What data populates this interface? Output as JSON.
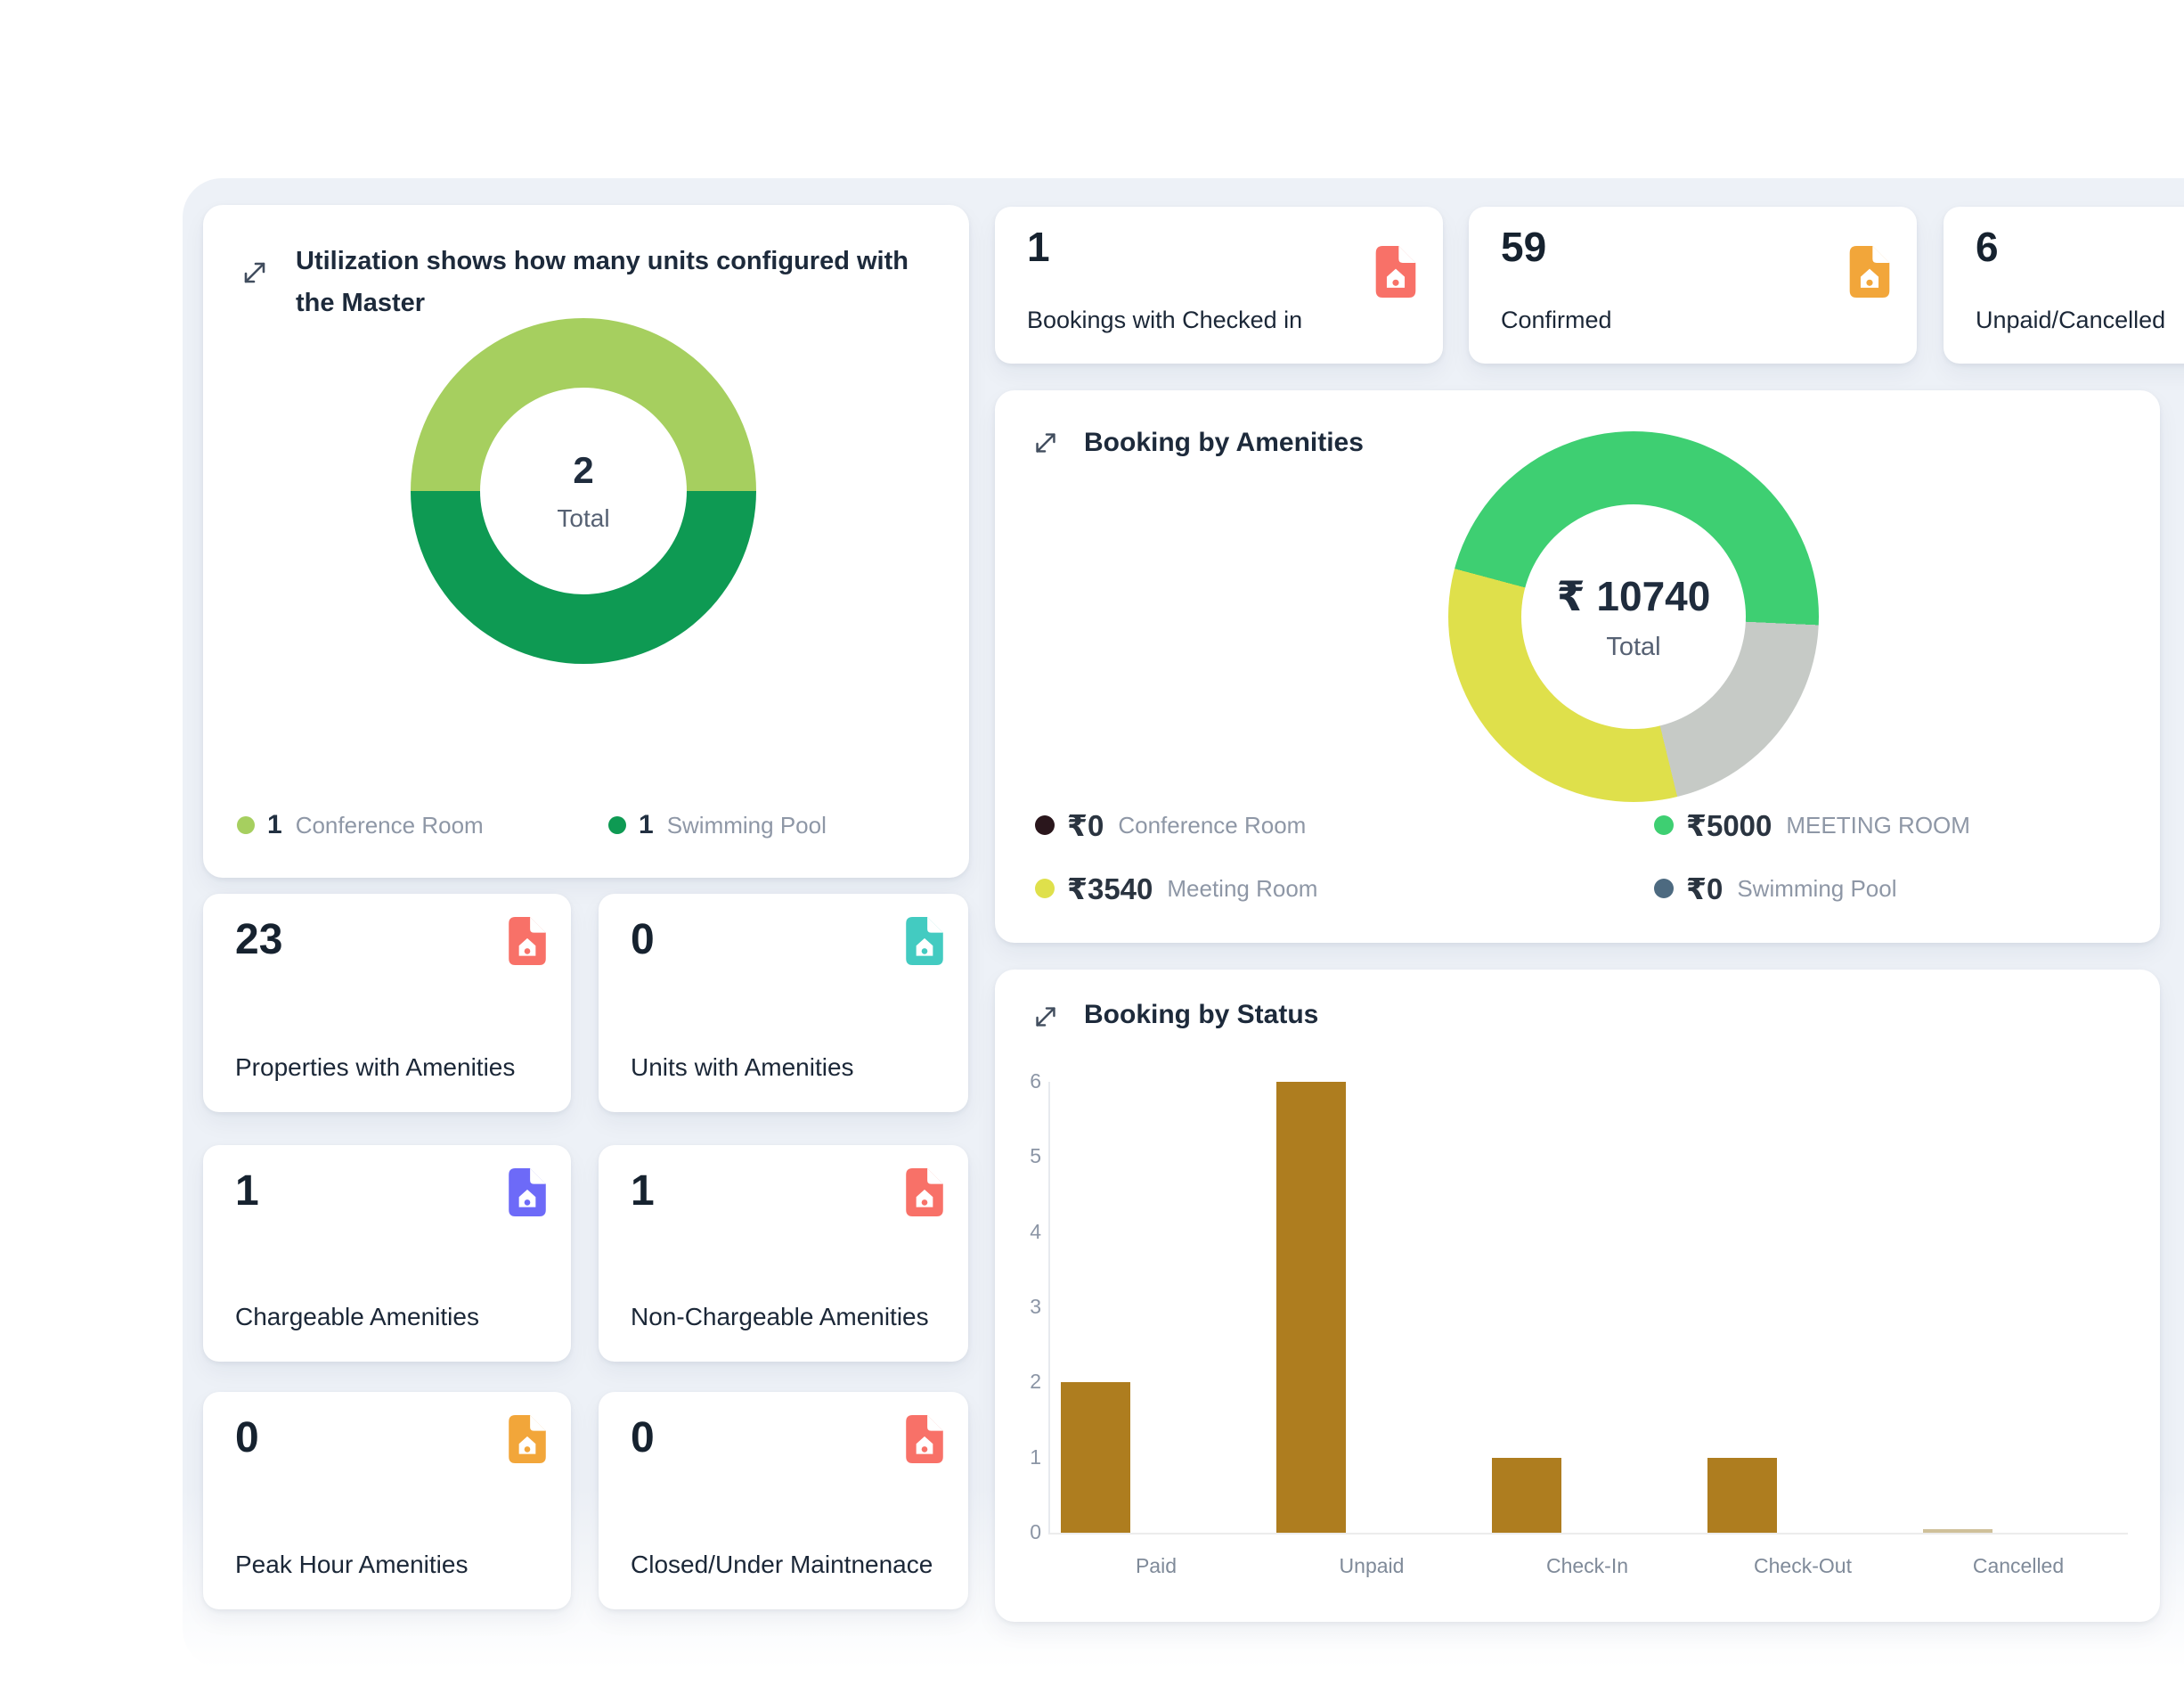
{
  "utilization": {
    "title": "Utilization shows how many units configured with the Master",
    "center_value": "2",
    "center_label": "Total",
    "legend": [
      {
        "value": "1",
        "label": "Conference Room",
        "color": "#a6cf5f"
      },
      {
        "value": "1",
        "label": "Swimming Pool",
        "color": "#0e9a53"
      }
    ]
  },
  "top_stats": [
    {
      "value": "1",
      "label": "Bookings with Checked in",
      "icon": "document-home",
      "icon_color": "#f87168"
    },
    {
      "value": "59",
      "label": "Confirmed",
      "icon": "document-home",
      "icon_color": "#f2a63a"
    },
    {
      "value": "6",
      "label": "Unpaid/Cancelled"
    }
  ],
  "left_stats": [
    {
      "value": "23",
      "label": "Properties with Amenities",
      "icon": "document-home",
      "icon_color": "#f87168"
    },
    {
      "value": "0",
      "label": "Units with Amenities",
      "icon": "document-home",
      "icon_color": "#43cbc1"
    },
    {
      "value": "1",
      "label": "Chargeable Amenities",
      "icon": "document-home",
      "icon_color": "#6d6af8"
    },
    {
      "value": "1",
      "label": "Non-Chargeable Amenities",
      "icon": "document-home",
      "icon_color": "#f87168"
    },
    {
      "value": "0",
      "label": "Peak Hour Amenities",
      "icon": "document-home",
      "icon_color": "#f2a63a"
    },
    {
      "value": "0",
      "label": "Closed/Under Maintnenace",
      "icon": "document-home",
      "icon_color": "#f87168"
    }
  ],
  "amenities": {
    "title": "Booking by Amenities",
    "center_value": "₹ 10740",
    "center_label": "Total",
    "legend": [
      {
        "value": "₹0",
        "label": "Conference Room",
        "color": "#2a161c"
      },
      {
        "value": "₹5000",
        "label": "MEETING ROOM",
        "color": "#3ecf72"
      },
      {
        "value": "₹3540",
        "label": "Meeting Room",
        "color": "#dfe04b"
      },
      {
        "value": "₹0",
        "label": "Swimming Pool",
        "color": "#4d6a80"
      }
    ]
  },
  "status": {
    "title": "Booking by Status"
  },
  "chart_data": [
    {
      "type": "pie",
      "name": "utilization-donut",
      "title": "Utilization shows how many units configured with the Master",
      "start_angle": 270,
      "center_text": "2",
      "center_sub": "Total",
      "slices": [
        {
          "label": "Conference Room",
          "value": 1,
          "color": "#a6cf5f"
        },
        {
          "label": "Swimming Pool",
          "value": 1,
          "color": "#0e9a53"
        }
      ]
    },
    {
      "type": "pie",
      "name": "booking-by-amenities-donut",
      "title": "Booking by Amenities",
      "start_angle": 285,
      "center_text": "₹ 10740",
      "center_sub": "Total",
      "slices": [
        {
          "label": "MEETING ROOM",
          "value": 5000,
          "color": "#3ecf72"
        },
        {
          "label": "Unlabeled (estimated)",
          "value": 2200,
          "color": "#c6cac6"
        },
        {
          "label": "Meeting Room",
          "value": 3540,
          "color": "#dfe04b"
        },
        {
          "label": "Conference Room",
          "value": 0,
          "color": "#2a161c"
        },
        {
          "label": "Swimming Pool",
          "value": 0,
          "color": "#4d6a80"
        }
      ]
    },
    {
      "type": "bar",
      "name": "booking-by-status",
      "title": "Booking by Status",
      "categories": [
        "Paid",
        "Unpaid",
        "Check-In",
        "Check-Out",
        "Cancelled"
      ],
      "values": [
        2,
        6,
        1,
        1,
        0
      ],
      "ylim": [
        0,
        6
      ],
      "yticks": [
        0,
        1,
        2,
        3,
        4,
        5,
        6
      ],
      "bar_color": "#ae7d1f",
      "zero_bar_color": "#cfc09a",
      "xlabel": "",
      "ylabel": "",
      "grid": false,
      "legend_position": "none"
    }
  ]
}
